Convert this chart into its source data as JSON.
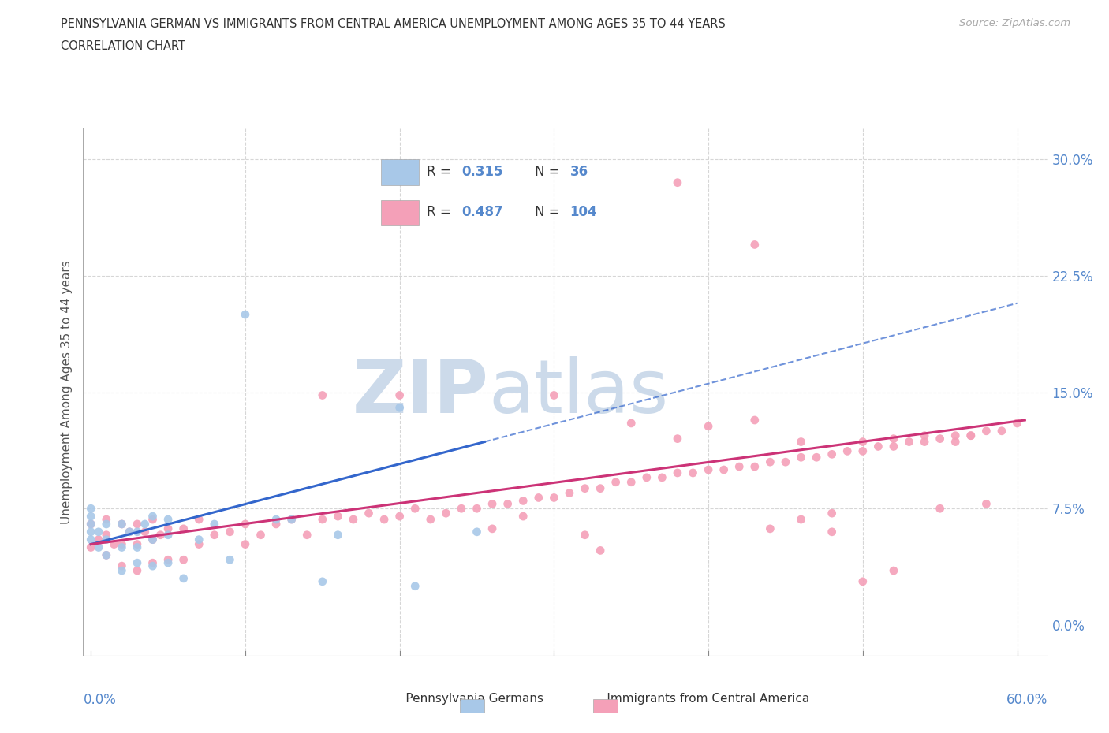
{
  "title_line1": "PENNSYLVANIA GERMAN VS IMMIGRANTS FROM CENTRAL AMERICA UNEMPLOYMENT AMONG AGES 35 TO 44 YEARS",
  "title_line2": "CORRELATION CHART",
  "source_text": "Source: ZipAtlas.com",
  "ylabel": "Unemployment Among Ages 35 to 44 years",
  "xlim": [
    -0.005,
    0.62
  ],
  "ylim": [
    -0.02,
    0.32
  ],
  "yticks": [
    0.0,
    0.075,
    0.15,
    0.225,
    0.3
  ],
  "xtick_left": "0.0%",
  "xtick_right": "60.0%",
  "legend_r1": "0.315",
  "legend_n1": "36",
  "legend_r2": "0.487",
  "legend_n2": "104",
  "blue_color": "#a8c8e8",
  "pink_color": "#f4a0b8",
  "blue_line_color": "#3366cc",
  "pink_line_color": "#cc3377",
  "watermark_zip_color": "#ccdaee",
  "watermark_atlas_color": "#ccdaee",
  "axis_tick_color": "#5588cc",
  "grid_color": "#cccccc",
  "title_color": "#333333",
  "blue_pts_x": [
    0.0,
    0.0,
    0.0,
    0.0,
    0.0,
    0.005,
    0.005,
    0.01,
    0.01,
    0.01,
    0.02,
    0.02,
    0.02,
    0.025,
    0.03,
    0.03,
    0.03,
    0.035,
    0.04,
    0.04,
    0.04,
    0.05,
    0.05,
    0.05,
    0.06,
    0.07,
    0.08,
    0.09,
    0.1,
    0.12,
    0.13,
    0.15,
    0.16,
    0.2,
    0.21,
    0.25
  ],
  "blue_pts_y": [
    0.055,
    0.06,
    0.065,
    0.07,
    0.075,
    0.05,
    0.06,
    0.045,
    0.055,
    0.065,
    0.035,
    0.05,
    0.065,
    0.06,
    0.04,
    0.05,
    0.06,
    0.065,
    0.038,
    0.055,
    0.07,
    0.04,
    0.058,
    0.068,
    0.03,
    0.055,
    0.065,
    0.042,
    0.2,
    0.068,
    0.068,
    0.028,
    0.058,
    0.14,
    0.025,
    0.06
  ],
  "pink_pts_x": [
    0.0,
    0.0,
    0.005,
    0.01,
    0.01,
    0.01,
    0.015,
    0.02,
    0.02,
    0.02,
    0.025,
    0.03,
    0.03,
    0.03,
    0.035,
    0.04,
    0.04,
    0.04,
    0.045,
    0.05,
    0.05,
    0.06,
    0.06,
    0.07,
    0.07,
    0.08,
    0.09,
    0.1,
    0.1,
    0.11,
    0.12,
    0.13,
    0.14,
    0.15,
    0.16,
    0.17,
    0.18,
    0.19,
    0.2,
    0.21,
    0.22,
    0.23,
    0.24,
    0.25,
    0.26,
    0.27,
    0.28,
    0.29,
    0.3,
    0.31,
    0.32,
    0.33,
    0.34,
    0.35,
    0.36,
    0.37,
    0.38,
    0.39,
    0.4,
    0.41,
    0.42,
    0.43,
    0.44,
    0.45,
    0.46,
    0.47,
    0.48,
    0.49,
    0.5,
    0.51,
    0.52,
    0.53,
    0.54,
    0.55,
    0.56,
    0.57,
    0.58,
    0.59,
    0.6,
    0.35,
    0.38,
    0.3,
    0.4,
    0.43,
    0.46,
    0.5,
    0.52,
    0.54,
    0.56,
    0.57,
    0.55,
    0.58,
    0.48,
    0.5,
    0.52,
    0.44,
    0.46,
    0.48,
    0.26,
    0.28,
    0.32,
    0.33,
    0.15,
    0.2
  ],
  "pink_pts_y": [
    0.05,
    0.065,
    0.055,
    0.045,
    0.058,
    0.068,
    0.052,
    0.038,
    0.052,
    0.065,
    0.06,
    0.035,
    0.052,
    0.065,
    0.06,
    0.04,
    0.055,
    0.068,
    0.058,
    0.042,
    0.062,
    0.042,
    0.062,
    0.052,
    0.068,
    0.058,
    0.06,
    0.052,
    0.065,
    0.058,
    0.065,
    0.068,
    0.058,
    0.068,
    0.07,
    0.068,
    0.072,
    0.068,
    0.07,
    0.075,
    0.068,
    0.072,
    0.075,
    0.075,
    0.078,
    0.078,
    0.08,
    0.082,
    0.082,
    0.085,
    0.088,
    0.088,
    0.092,
    0.092,
    0.095,
    0.095,
    0.098,
    0.098,
    0.1,
    0.1,
    0.102,
    0.102,
    0.105,
    0.105,
    0.108,
    0.108,
    0.11,
    0.112,
    0.112,
    0.115,
    0.115,
    0.118,
    0.118,
    0.12,
    0.122,
    0.122,
    0.125,
    0.125,
    0.13,
    0.13,
    0.12,
    0.148,
    0.128,
    0.132,
    0.118,
    0.118,
    0.12,
    0.122,
    0.118,
    0.122,
    0.075,
    0.078,
    0.06,
    0.028,
    0.035,
    0.062,
    0.068,
    0.072,
    0.062,
    0.07,
    0.058,
    0.048,
    0.148,
    0.148
  ],
  "blue_trend_x": [
    0.0,
    0.255
  ],
  "blue_trend_y": [
    0.052,
    0.118
  ],
  "pink_trend_x": [
    0.0,
    0.605
  ],
  "pink_trend_y": [
    0.052,
    0.132
  ]
}
